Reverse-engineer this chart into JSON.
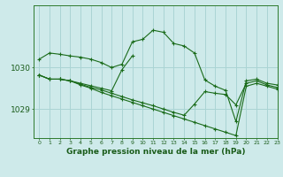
{
  "title": "Graphe pression niveau de la mer (hPa)",
  "bg_color": "#ceeaea",
  "grid_color": "#aad4d4",
  "line_color": "#1a6b1a",
  "xlim": [
    -0.5,
    23
  ],
  "ylim": [
    1028.3,
    1031.5
  ],
  "yticks": [
    1029,
    1030
  ],
  "xticks": [
    0,
    1,
    2,
    3,
    4,
    5,
    6,
    7,
    8,
    9,
    10,
    11,
    12,
    13,
    14,
    15,
    16,
    17,
    18,
    19,
    20,
    21,
    22,
    23
  ],
  "series": [
    [
      1030.2,
      1030.35,
      1030.32,
      1030.28,
      1030.25,
      1030.2,
      1030.12,
      1030.0,
      1030.08,
      1030.62,
      1030.68,
      1030.9,
      1030.85,
      1030.58,
      1030.52,
      1030.35,
      1029.7,
      1029.55,
      1029.45,
      1028.7,
      1029.68,
      1029.72,
      1029.62,
      1029.58
    ],
    [
      1029.82,
      1029.72,
      1029.72,
      1029.68,
      1029.62,
      1029.56,
      1029.5,
      1029.44,
      1029.95,
      1030.28,
      null,
      null,
      null,
      null,
      null,
      null,
      null,
      null,
      null,
      null,
      null,
      null,
      null,
      null
    ],
    [
      1029.82,
      1029.72,
      1029.72,
      1029.68,
      1029.6,
      1029.52,
      1029.46,
      1029.38,
      1029.3,
      1029.22,
      1029.15,
      1029.08,
      1029.0,
      1028.92,
      1028.85,
      1029.12,
      1029.42,
      1029.38,
      1029.35,
      1029.1,
      1029.62,
      1029.68,
      1029.58,
      1029.52
    ],
    [
      1029.82,
      1029.72,
      1029.72,
      1029.68,
      1029.58,
      1029.5,
      1029.4,
      1029.32,
      1029.24,
      1029.16,
      1029.08,
      1029.0,
      1028.92,
      1028.84,
      1028.76,
      1028.68,
      1028.6,
      1028.52,
      1028.44,
      1028.36,
      1029.55,
      1029.62,
      1029.55,
      1029.48
    ]
  ]
}
